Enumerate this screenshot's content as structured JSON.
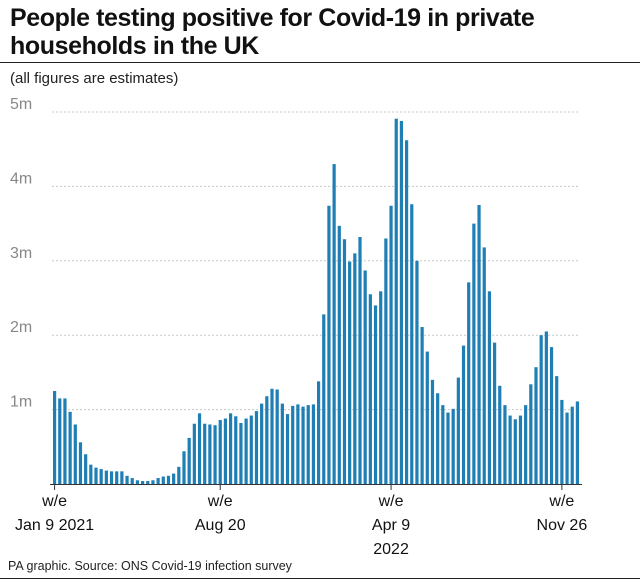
{
  "title": "People testing positive for Covid-19 in private households in the UK",
  "subtitle": "(all figures are estimates)",
  "source": "PA graphic. Source: ONS Covid-19 infection survey",
  "colors": {
    "bar": "#1f7fb4",
    "grid": "#c8c8c8",
    "axis": "#333333"
  },
  "chart_data": {
    "type": "bar",
    "ylim": [
      0,
      5000000
    ],
    "yticks": [
      {
        "value": 1000000,
        "label": "1m"
      },
      {
        "value": 2000000,
        "label": "2m"
      },
      {
        "value": 3000000,
        "label": "3m"
      },
      {
        "value": 4000000,
        "label": "4m"
      },
      {
        "value": 5000000,
        "label": "5m"
      }
    ],
    "xticks": [
      {
        "index": 0,
        "lines": [
          "w/e",
          "Jan 9 2021"
        ]
      },
      {
        "index": 32,
        "lines": [
          "w/e",
          "Aug 20"
        ]
      },
      {
        "index": 65,
        "lines": [
          "w/e",
          "Apr 9",
          "2022"
        ]
      },
      {
        "index": 98,
        "lines": [
          "w/e",
          "Nov 26"
        ]
      }
    ],
    "grid": true,
    "values": [
      1250000,
      1150000,
      1150000,
      970000,
      800000,
      560000,
      400000,
      260000,
      220000,
      200000,
      180000,
      170000,
      170000,
      170000,
      110000,
      80000,
      50000,
      40000,
      40000,
      50000,
      80000,
      100000,
      110000,
      140000,
      230000,
      440000,
      620000,
      810000,
      950000,
      810000,
      800000,
      790000,
      860000,
      880000,
      950000,
      910000,
      820000,
      880000,
      920000,
      980000,
      1080000,
      1180000,
      1280000,
      1270000,
      1080000,
      940000,
      1050000,
      1070000,
      1040000,
      1060000,
      1070000,
      1380000,
      2280000,
      3740000,
      4300000,
      3470000,
      3290000,
      2990000,
      3100000,
      3320000,
      2870000,
      2550000,
      2400000,
      2590000,
      3300000,
      3740000,
      4910000,
      4880000,
      4620000,
      3760000,
      3000000,
      2110000,
      1780000,
      1400000,
      1220000,
      1060000,
      960000,
      1010000,
      1430000,
      1860000,
      2710000,
      3500000,
      3750000,
      3180000,
      2590000,
      1900000,
      1320000,
      1060000,
      920000,
      870000,
      920000,
      1060000,
      1340000,
      1570000,
      2000000,
      2050000,
      1840000,
      1450000,
      1130000,
      960000,
      1040000,
      1110000
    ]
  }
}
